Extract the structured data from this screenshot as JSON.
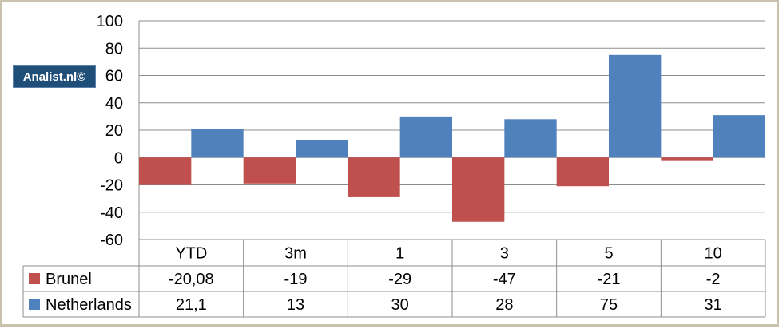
{
  "watermark": "Analist.nl©",
  "colors": {
    "brunel": "#c0504d",
    "netherlands": "#4f81bd"
  },
  "chart_data": {
    "type": "bar",
    "categories": [
      "YTD",
      "3m",
      "1",
      "3",
      "5",
      "10"
    ],
    "series": [
      {
        "name": "Brunel",
        "values": [
          -20.08,
          -19,
          -29,
          -47,
          -21,
          -2
        ],
        "labels": [
          "-20,08",
          "-19",
          "-29",
          "-47",
          "-21",
          "-2"
        ]
      },
      {
        "name": "Netherlands",
        "values": [
          21.1,
          13,
          30,
          28,
          75,
          31
        ],
        "labels": [
          "21,1",
          "13",
          "30",
          "28",
          "75",
          "31"
        ]
      }
    ],
    "ylim": [
      -60,
      100
    ],
    "yticks": [
      "100",
      "80",
      "60",
      "40",
      "20",
      "0",
      "-20",
      "-40",
      "-60"
    ],
    "grid": true,
    "legend": "data-table"
  }
}
